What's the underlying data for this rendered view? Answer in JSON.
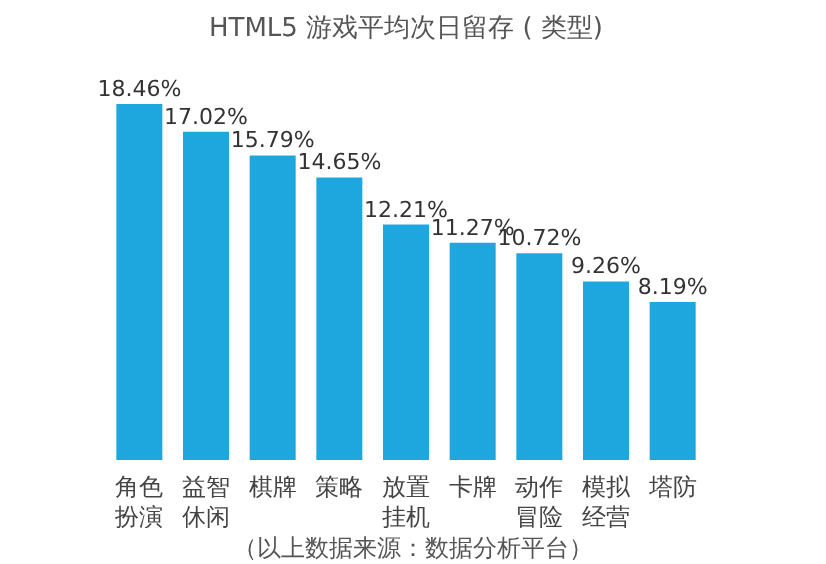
{
  "chart_data": {
    "type": "bar",
    "title": "HTML5 游戏平均次日留存 ( 类型)",
    "categories": [
      "角色扮演",
      "益智休闲",
      "棋牌",
      "策略",
      "放置挂机",
      "卡牌",
      "动作冒险",
      "模拟经营",
      "塔防"
    ],
    "values": [
      18.46,
      17.02,
      15.79,
      14.65,
      12.21,
      11.27,
      10.72,
      9.26,
      8.19
    ],
    "value_labels": [
      "18.46%",
      "17.02%",
      "15.79%",
      "14.65%",
      "12.21%",
      "11.27%",
      "10.72%",
      "9.26%",
      "8.19%"
    ],
    "color": "#1ea7df",
    "annotations": [
      "（以上数据来源：数据分析平台）"
    ]
  }
}
